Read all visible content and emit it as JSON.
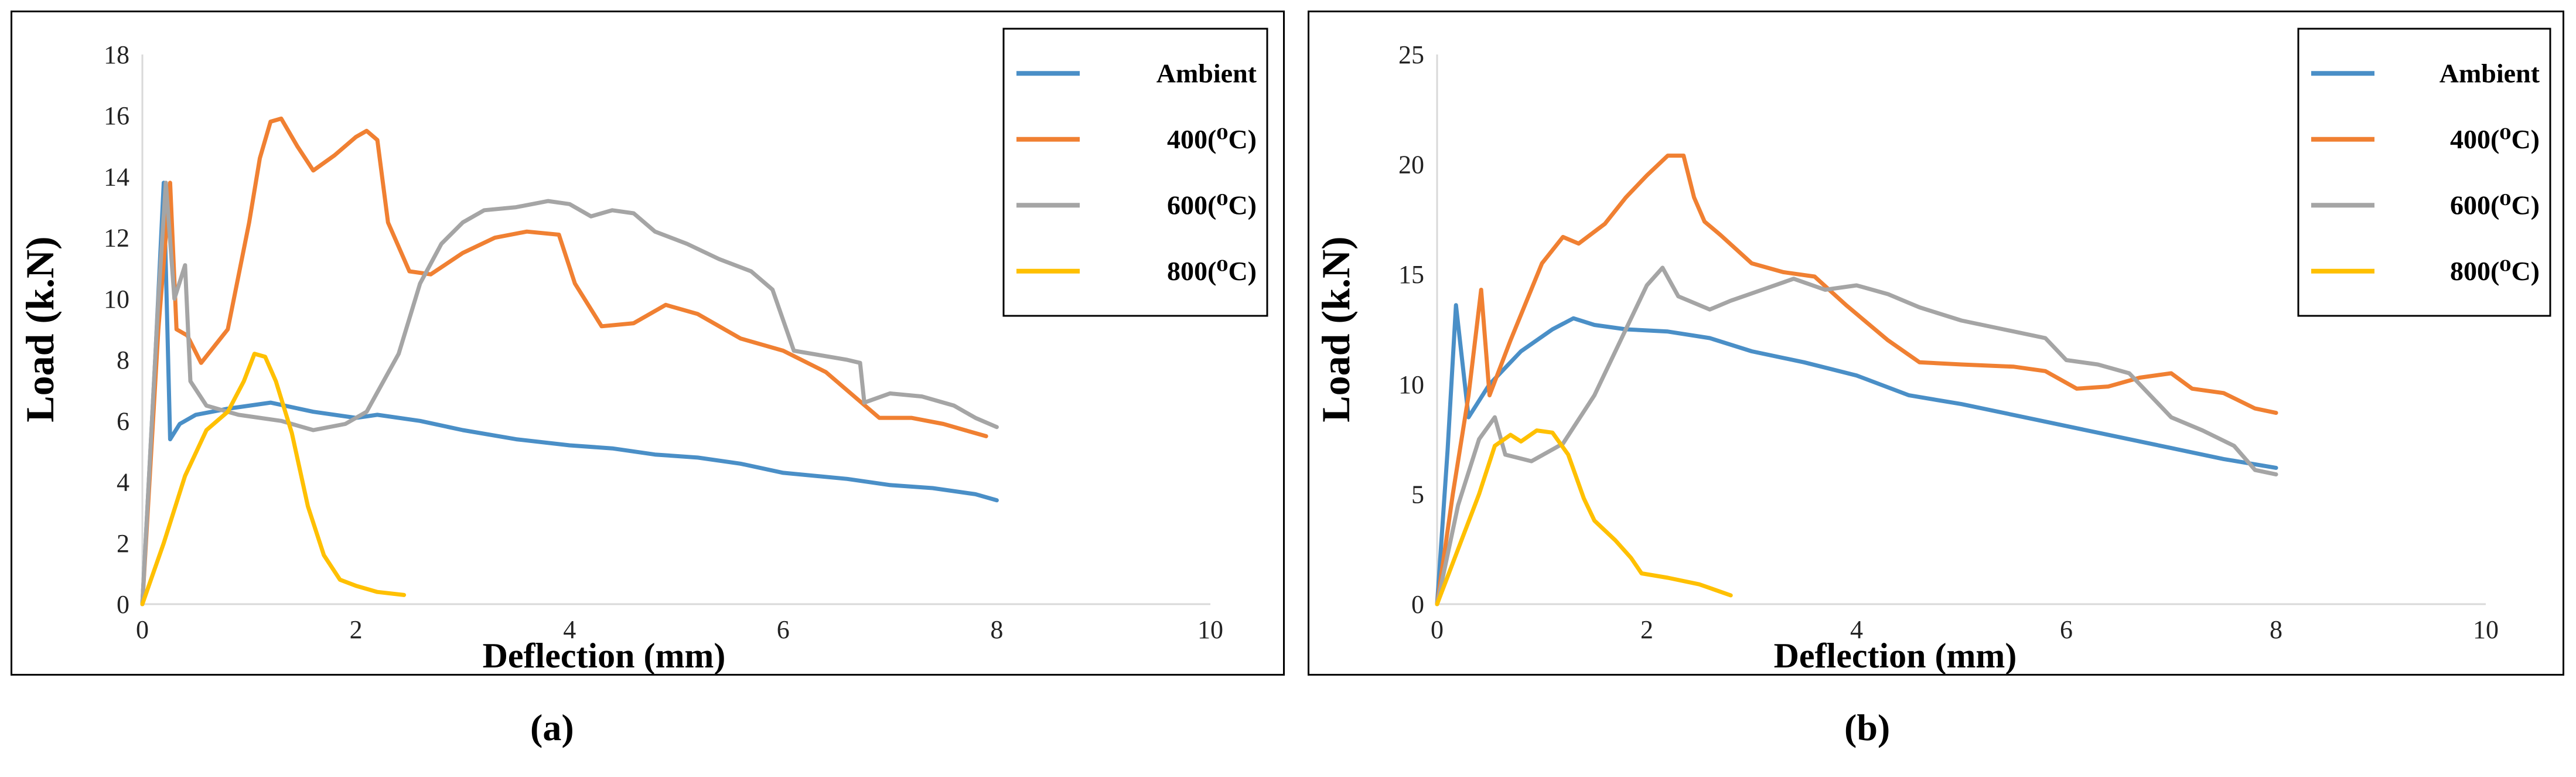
{
  "colors": {
    "Ambient": "#4A8FC7",
    "400": "#F08032",
    "600": "#A5A5A5",
    "800": "#FFC000"
  },
  "chart_data": [
    {
      "type": "line",
      "caption": "(a)",
      "xlabel": "Deflection (mm)",
      "ylabel": "Load (k.N)",
      "xlim": [
        0,
        10
      ],
      "ylim": [
        0,
        18
      ],
      "xticks": [
        0,
        2,
        4,
        6,
        8,
        10
      ],
      "yticks": [
        0,
        2,
        4,
        6,
        8,
        10,
        12,
        14,
        16,
        18
      ],
      "legend_position": "top-right",
      "series": [
        {
          "name": "Ambient",
          "key": "Ambient",
          "points": [
            [
              0,
              0
            ],
            [
              0.12,
              8
            ],
            [
              0.2,
              13.8
            ],
            [
              0.26,
              5.4
            ],
            [
              0.35,
              5.9
            ],
            [
              0.5,
              6.2
            ],
            [
              0.8,
              6.4
            ],
            [
              1.2,
              6.6
            ],
            [
              1.6,
              6.3
            ],
            [
              2.0,
              6.1
            ],
            [
              2.2,
              6.2
            ],
            [
              2.6,
              6.0
            ],
            [
              3.0,
              5.7
            ],
            [
              3.5,
              5.4
            ],
            [
              4.0,
              5.2
            ],
            [
              4.4,
              5.1
            ],
            [
              4.8,
              4.9
            ],
            [
              5.2,
              4.8
            ],
            [
              5.6,
              4.6
            ],
            [
              6.0,
              4.3
            ],
            [
              6.6,
              4.1
            ],
            [
              7.0,
              3.9
            ],
            [
              7.4,
              3.8
            ],
            [
              7.8,
              3.6
            ],
            [
              8.0,
              3.4
            ]
          ]
        },
        {
          "name": "400(⁰C)",
          "key": "400",
          "points": [
            [
              0,
              0
            ],
            [
              0.15,
              9
            ],
            [
              0.26,
              13.8
            ],
            [
              0.32,
              9
            ],
            [
              0.42,
              8.8
            ],
            [
              0.55,
              7.9
            ],
            [
              0.8,
              9
            ],
            [
              1.0,
              12.5
            ],
            [
              1.1,
              14.6
            ],
            [
              1.2,
              15.8
            ],
            [
              1.3,
              15.9
            ],
            [
              1.45,
              15
            ],
            [
              1.6,
              14.2
            ],
            [
              1.8,
              14.7
            ],
            [
              2.0,
              15.3
            ],
            [
              2.1,
              15.5
            ],
            [
              2.2,
              15.2
            ],
            [
              2.3,
              12.5
            ],
            [
              2.5,
              10.9
            ],
            [
              2.7,
              10.8
            ],
            [
              3.0,
              11.5
            ],
            [
              3.3,
              12
            ],
            [
              3.6,
              12.2
            ],
            [
              3.9,
              12.1
            ],
            [
              4.05,
              10.5
            ],
            [
              4.3,
              9.1
            ],
            [
              4.6,
              9.2
            ],
            [
              4.9,
              9.8
            ],
            [
              5.2,
              9.5
            ],
            [
              5.6,
              8.7
            ],
            [
              6.0,
              8.3
            ],
            [
              6.4,
              7.6
            ],
            [
              6.7,
              6.7
            ],
            [
              6.9,
              6.1
            ],
            [
              7.2,
              6.1
            ],
            [
              7.5,
              5.9
            ],
            [
              7.7,
              5.7
            ],
            [
              7.9,
              5.5
            ]
          ]
        },
        {
          "name": "600(⁰C)",
          "key": "600",
          "points": [
            [
              0,
              0
            ],
            [
              0.15,
              10
            ],
            [
              0.22,
              13.8
            ],
            [
              0.3,
              10
            ],
            [
              0.4,
              11.1
            ],
            [
              0.45,
              7.3
            ],
            [
              0.6,
              6.5
            ],
            [
              0.9,
              6.2
            ],
            [
              1.3,
              6.0
            ],
            [
              1.6,
              5.7
            ],
            [
              1.9,
              5.9
            ],
            [
              2.1,
              6.3
            ],
            [
              2.4,
              8.2
            ],
            [
              2.6,
              10.5
            ],
            [
              2.8,
              11.8
            ],
            [
              3.0,
              12.5
            ],
            [
              3.2,
              12.9
            ],
            [
              3.5,
              13.0
            ],
            [
              3.8,
              13.2
            ],
            [
              4.0,
              13.1
            ],
            [
              4.2,
              12.7
            ],
            [
              4.4,
              12.9
            ],
            [
              4.6,
              12.8
            ],
            [
              4.8,
              12.2
            ],
            [
              5.1,
              11.8
            ],
            [
              5.4,
              11.3
            ],
            [
              5.7,
              10.9
            ],
            [
              5.9,
              10.3
            ],
            [
              6.1,
              8.3
            ],
            [
              6.6,
              8.0
            ],
            [
              6.72,
              7.9
            ],
            [
              6.76,
              6.6
            ],
            [
              7.0,
              6.9
            ],
            [
              7.3,
              6.8
            ],
            [
              7.6,
              6.5
            ],
            [
              7.8,
              6.1
            ],
            [
              8.0,
              5.8
            ]
          ]
        },
        {
          "name": "800(⁰C)",
          "key": "800",
          "points": [
            [
              0,
              0
            ],
            [
              0.2,
              2
            ],
            [
              0.4,
              4.2
            ],
            [
              0.6,
              5.7
            ],
            [
              0.8,
              6.3
            ],
            [
              0.95,
              7.3
            ],
            [
              1.05,
              8.2
            ],
            [
              1.15,
              8.1
            ],
            [
              1.25,
              7.3
            ],
            [
              1.4,
              5.6
            ],
            [
              1.55,
              3.2
            ],
            [
              1.7,
              1.6
            ],
            [
              1.85,
              0.8
            ],
            [
              2.0,
              0.6
            ],
            [
              2.2,
              0.4
            ],
            [
              2.45,
              0.3
            ]
          ]
        }
      ]
    },
    {
      "type": "line",
      "caption": "(b)",
      "xlabel": "Deflection (mm)",
      "ylabel": "Load (k.N)",
      "xlim": [
        0,
        10
      ],
      "ylim": [
        0,
        25
      ],
      "xticks": [
        0,
        2,
        4,
        6,
        8,
        10
      ],
      "yticks": [
        0,
        5,
        10,
        15,
        20,
        25
      ],
      "legend_position": "top-right",
      "series": [
        {
          "name": "Ambient",
          "key": "Ambient",
          "points": [
            [
              0,
              0
            ],
            [
              0.1,
              7
            ],
            [
              0.18,
              13.6
            ],
            [
              0.3,
              8.5
            ],
            [
              0.5,
              10
            ],
            [
              0.8,
              11.5
            ],
            [
              1.1,
              12.5
            ],
            [
              1.3,
              13
            ],
            [
              1.5,
              12.7
            ],
            [
              1.8,
              12.5
            ],
            [
              2.2,
              12.4
            ],
            [
              2.6,
              12.1
            ],
            [
              3.0,
              11.5
            ],
            [
              3.5,
              11.0
            ],
            [
              4.0,
              10.4
            ],
            [
              4.5,
              9.5
            ],
            [
              5.0,
              9.1
            ],
            [
              5.5,
              8.6
            ],
            [
              6.0,
              8.1
            ],
            [
              6.5,
              7.6
            ],
            [
              7.0,
              7.1
            ],
            [
              7.5,
              6.6
            ],
            [
              8.0,
              6.2
            ]
          ]
        },
        {
          "name": "400(⁰C)",
          "key": "400",
          "points": [
            [
              0,
              0
            ],
            [
              0.15,
              5
            ],
            [
              0.3,
              9.5
            ],
            [
              0.42,
              14.3
            ],
            [
              0.5,
              9.5
            ],
            [
              0.7,
              12
            ],
            [
              1.0,
              15.5
            ],
            [
              1.2,
              16.7
            ],
            [
              1.35,
              16.4
            ],
            [
              1.6,
              17.3
            ],
            [
              1.8,
              18.5
            ],
            [
              2.0,
              19.5
            ],
            [
              2.2,
              20.4
            ],
            [
              2.35,
              20.4
            ],
            [
              2.45,
              18.5
            ],
            [
              2.55,
              17.4
            ],
            [
              2.7,
              16.8
            ],
            [
              3.0,
              15.5
            ],
            [
              3.3,
              15.1
            ],
            [
              3.6,
              14.9
            ],
            [
              3.9,
              13.6
            ],
            [
              4.3,
              12
            ],
            [
              4.6,
              11
            ],
            [
              5.0,
              10.9
            ],
            [
              5.5,
              10.8
            ],
            [
              5.8,
              10.6
            ],
            [
              6.1,
              9.8
            ],
            [
              6.4,
              9.9
            ],
            [
              6.7,
              10.3
            ],
            [
              7.0,
              10.5
            ],
            [
              7.2,
              9.8
            ],
            [
              7.5,
              9.6
            ],
            [
              7.8,
              8.9
            ],
            [
              8.0,
              8.7
            ]
          ]
        },
        {
          "name": "600(⁰C)",
          "key": "600",
          "points": [
            [
              0,
              0
            ],
            [
              0.2,
              4.5
            ],
            [
              0.4,
              7.5
            ],
            [
              0.55,
              8.5
            ],
            [
              0.65,
              6.8
            ],
            [
              0.9,
              6.5
            ],
            [
              1.2,
              7.3
            ],
            [
              1.5,
              9.5
            ],
            [
              1.8,
              12.5
            ],
            [
              2.0,
              14.5
            ],
            [
              2.15,
              15.3
            ],
            [
              2.3,
              14
            ],
            [
              2.6,
              13.4
            ],
            [
              2.8,
              13.8
            ],
            [
              3.1,
              14.3
            ],
            [
              3.4,
              14.8
            ],
            [
              3.7,
              14.3
            ],
            [
              4.0,
              14.5
            ],
            [
              4.3,
              14.1
            ],
            [
              4.6,
              13.5
            ],
            [
              5.0,
              12.9
            ],
            [
              5.4,
              12.5
            ],
            [
              5.8,
              12.1
            ],
            [
              6.0,
              11.1
            ],
            [
              6.3,
              10.9
            ],
            [
              6.6,
              10.5
            ],
            [
              7.0,
              8.5
            ],
            [
              7.3,
              7.9
            ],
            [
              7.6,
              7.2
            ],
            [
              7.8,
              6.1
            ],
            [
              8.0,
              5.9
            ]
          ]
        },
        {
          "name": "800(⁰C)",
          "key": "800",
          "points": [
            [
              0,
              0
            ],
            [
              0.2,
              2.5
            ],
            [
              0.4,
              5
            ],
            [
              0.55,
              7.2
            ],
            [
              0.7,
              7.7
            ],
            [
              0.8,
              7.4
            ],
            [
              0.95,
              7.9
            ],
            [
              1.1,
              7.8
            ],
            [
              1.25,
              6.8
            ],
            [
              1.4,
              4.8
            ],
            [
              1.5,
              3.8
            ],
            [
              1.7,
              2.9
            ],
            [
              1.85,
              2.1
            ],
            [
              1.95,
              1.4
            ],
            [
              2.2,
              1.2
            ],
            [
              2.5,
              0.9
            ],
            [
              2.8,
              0.4
            ]
          ]
        }
      ]
    }
  ]
}
